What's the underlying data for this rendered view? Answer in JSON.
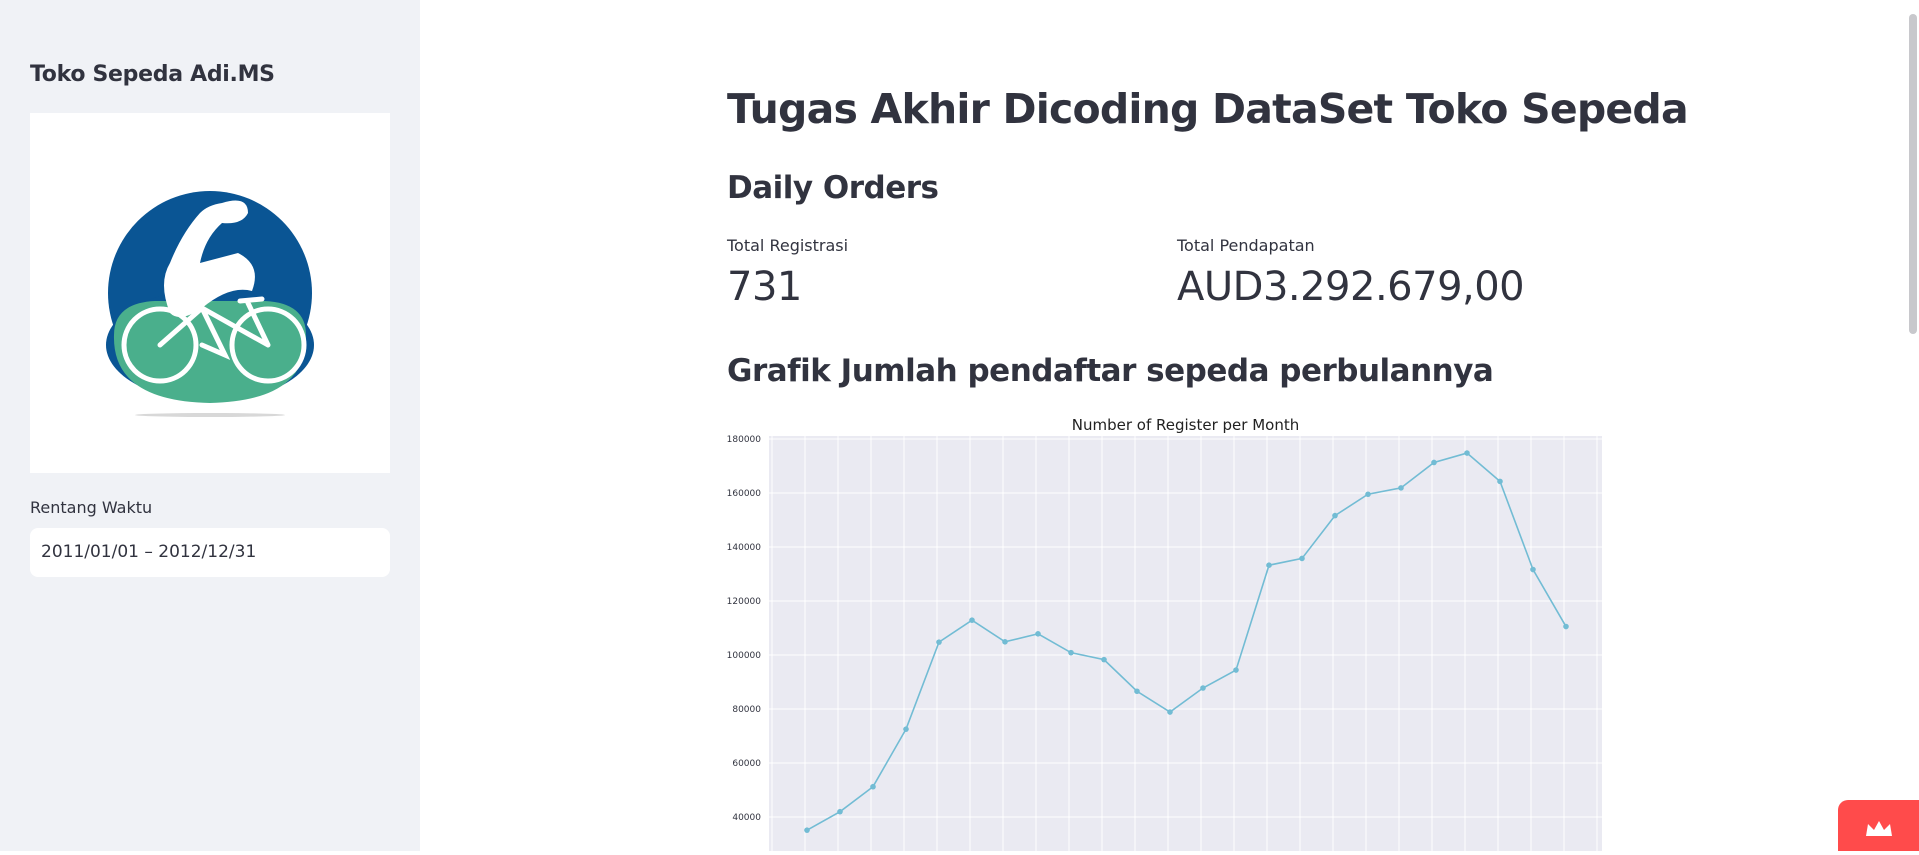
{
  "sidebar": {
    "title": "Toko Sepeda Adi.MS",
    "logo_icon": "bicycle-rider-logo",
    "date_range": {
      "label": "Rentang Waktu",
      "value": "2011/01/01 – 2012/12/31"
    }
  },
  "main": {
    "title": "Tugas Akhir Dicoding DataSet Toko Sepeda",
    "daily_orders": {
      "header": "Daily Orders",
      "metrics": [
        {
          "label": "Total Registrasi",
          "value": "731"
        },
        {
          "label": "Total Pendapatan",
          "value": "AUD3.292.679,00"
        }
      ]
    },
    "chart_header": "Grafik Jumlah pendaftar sepeda perbulannya"
  },
  "colors": {
    "sidebar_bg": "#f0f2f6",
    "text": "#31333f",
    "chart_bg": "#eaeaf2",
    "line": "#72bcd4",
    "logo_blue": "#0a5594",
    "logo_green": "#4aaf8c",
    "badge": "#ff4b4b"
  },
  "chart_data": {
    "type": "line",
    "title": "Number of Register per Month",
    "xlabel": "",
    "ylabel": "",
    "x": [
      1,
      2,
      3,
      4,
      5,
      6,
      7,
      8,
      9,
      10,
      11,
      12,
      13,
      14,
      15,
      16,
      17,
      18,
      19,
      20,
      21,
      22,
      23,
      24
    ],
    "values": [
      35116,
      41973,
      51219,
      72524,
      104771,
      112900,
      104889,
      107849,
      100873,
      98289,
      86573,
      78875,
      87775,
      94424,
      133257,
      135768,
      151630,
      159536,
      161902,
      171306,
      174795,
      164303,
      131655,
      110541
    ],
    "yticks": [
      40000,
      60000,
      80000,
      100000,
      120000,
      140000,
      160000,
      180000
    ],
    "ylim": [
      30000,
      182000
    ],
    "grid": true
  }
}
